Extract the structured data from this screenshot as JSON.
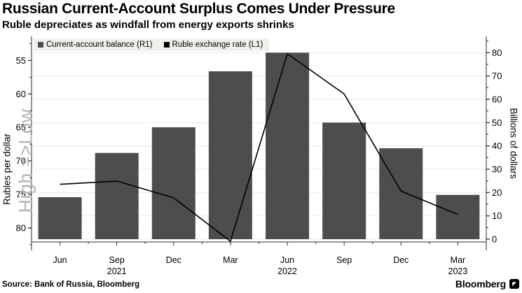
{
  "header": {
    "title": "Russian Current-Account Surplus Comes Under Pressure",
    "subtitle": "Ruble depreciates as windfall from energy exports shrinks"
  },
  "chart_data": {
    "type": "bar+line",
    "categories": [
      "Jun",
      "Sep",
      "Dec",
      "Mar",
      "Jun",
      "Sep",
      "Dec",
      "Mar"
    ],
    "category_years": [
      "",
      "2021",
      "",
      "",
      "2022",
      "",
      "",
      "2023"
    ],
    "series": [
      {
        "name": "Current-account balance (R1)",
        "type": "bar",
        "axis": "right",
        "color": "#4d4d4d",
        "values": [
          18,
          37,
          48,
          72,
          80,
          50,
          39,
          19
        ]
      },
      {
        "name": "Ruble exchange rate (L1)",
        "type": "line",
        "axis": "left",
        "color": "#000000",
        "values": [
          73.5,
          73,
          75.5,
          82,
          54,
          60,
          74.5,
          78
        ]
      }
    ],
    "left_axis": {
      "label": "Rubles per dollar",
      "annotation": "High =>Low",
      "ticks": [
        55,
        60,
        65,
        70,
        75,
        80
      ],
      "inverted": true,
      "top_value": 51.4,
      "bottom_value": 82.1
    },
    "right_axis": {
      "label": "Billions of dollars",
      "ticks": [
        0,
        10,
        20,
        30,
        40,
        50,
        60,
        70,
        80
      ],
      "top_value": 87,
      "bottom_value": -1.2
    },
    "grid": "horizontal",
    "grid_color": "#eaeae8"
  },
  "footer": {
    "source": "Source: Bank of Russia, Bloomberg",
    "brand": "Bloomberg"
  }
}
